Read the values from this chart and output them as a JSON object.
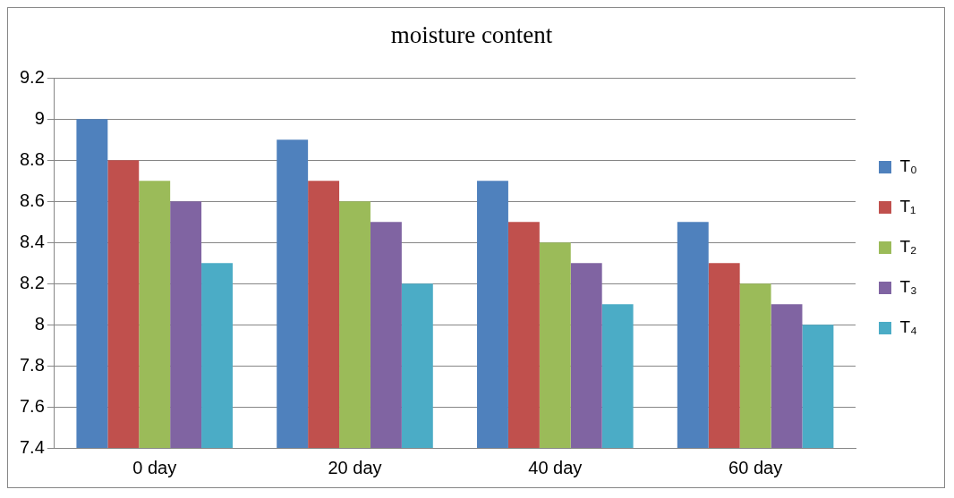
{
  "chart_data": {
    "type": "bar",
    "title": "moisture content",
    "categories": [
      "0 day",
      "20 day",
      "40 day",
      "60 day"
    ],
    "series": [
      {
        "name": "T₀",
        "color": "#4f81bd",
        "values": [
          9.0,
          8.9,
          8.7,
          8.5
        ]
      },
      {
        "name": "T₁",
        "color": "#c0504d",
        "values": [
          8.8,
          8.7,
          8.5,
          8.3
        ]
      },
      {
        "name": "T₂",
        "color": "#9bbb59",
        "values": [
          8.7,
          8.6,
          8.4,
          8.2
        ]
      },
      {
        "name": "T₃",
        "color": "#8064a2",
        "values": [
          8.6,
          8.5,
          8.3,
          8.1
        ]
      },
      {
        "name": "T₄",
        "color": "#4bacc6",
        "values": [
          8.3,
          8.2,
          8.1,
          8.0
        ]
      }
    ],
    "ylim": [
      7.4,
      9.2
    ],
    "yticks": [
      7.4,
      7.6,
      7.8,
      8,
      8.2,
      8.4,
      8.6,
      8.8,
      9,
      9.2
    ],
    "grid": "y",
    "legend": "right"
  }
}
